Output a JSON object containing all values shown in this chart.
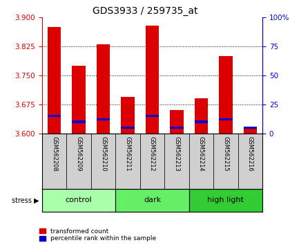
{
  "title": "GDS3933 / 259735_at",
  "samples": [
    "GSM562208",
    "GSM562209",
    "GSM562210",
    "GSM562211",
    "GSM562212",
    "GSM562213",
    "GSM562214",
    "GSM562215",
    "GSM562216"
  ],
  "red_values": [
    3.875,
    3.775,
    3.83,
    3.695,
    3.878,
    3.66,
    3.69,
    3.8,
    3.618
  ],
  "blue_values": [
    15,
    10,
    12,
    5,
    15,
    5,
    10,
    12,
    5
  ],
  "y_min": 3.6,
  "y_max": 3.9,
  "y_ticks": [
    3.6,
    3.675,
    3.75,
    3.825,
    3.9
  ],
  "right_y_ticks": [
    0,
    25,
    50,
    75,
    100
  ],
  "groups": [
    {
      "label": "control",
      "indices": [
        0,
        1,
        2
      ],
      "color": "#aaffaa"
    },
    {
      "label": "dark",
      "indices": [
        3,
        4,
        5
      ],
      "color": "#66ee66"
    },
    {
      "label": "high light",
      "indices": [
        6,
        7,
        8
      ],
      "color": "#33cc33"
    }
  ],
  "group_header": "stress",
  "legend_red": "transformed count",
  "legend_blue": "percentile rank within the sample",
  "bar_color": "#dd0000",
  "blue_color": "#0000cc",
  "bar_width": 0.55,
  "bg_color": "#ffffff",
  "plot_bg": "#ffffff",
  "tick_color_left": "#cc0000",
  "tick_color_right": "#0000cc",
  "xlabel_area_color": "#d0d0d0"
}
